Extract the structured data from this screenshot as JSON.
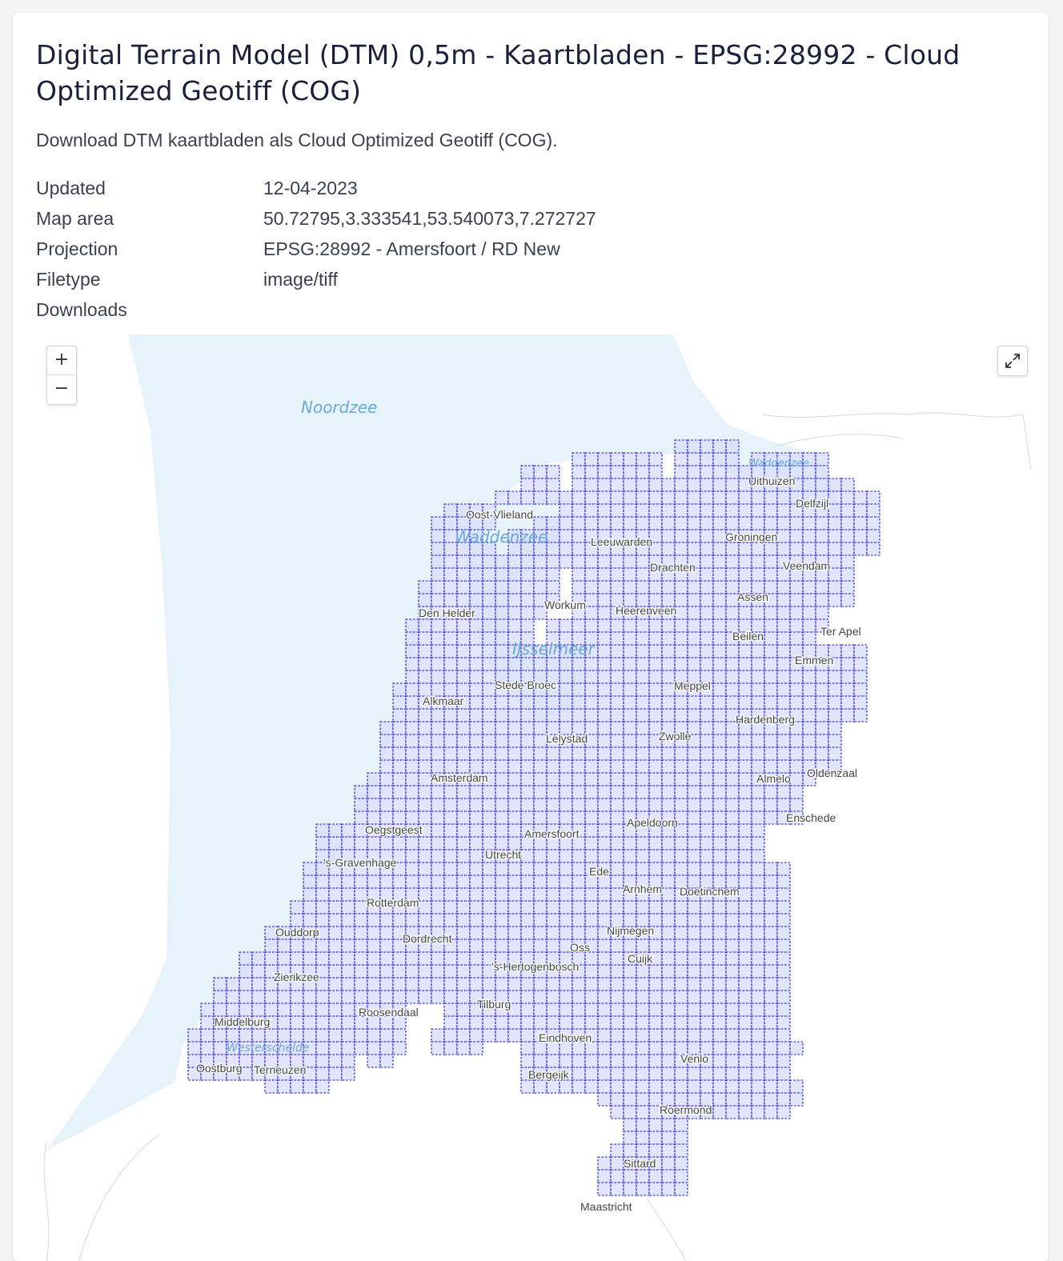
{
  "dataset": {
    "title": "Digital Terrain Model (DTM) 0,5m - Kaartbladen - EPSG:28992 - Cloud Optimized Geotiff (COG)",
    "description": "Download DTM kaartbladen als Cloud Optimized Geotiff (COG).",
    "metadata": [
      {
        "key": "Updated",
        "value": "12-04-2023"
      },
      {
        "key": "Map area",
        "value": "50.72795,3.333541,53.540073,7.272727"
      },
      {
        "key": "Projection",
        "value": "EPSG:28992 - Amersfoort / RD New"
      },
      {
        "key": "Filetype",
        "value": "image/tiff"
      },
      {
        "key": "Downloads",
        "value": ""
      }
    ]
  },
  "map": {
    "zoom_in_label": "+",
    "zoom_out_label": "−",
    "fullscreen_icon": "expand-icon",
    "colors": {
      "sea": "#e7f3fa",
      "tile_fill": "#d9dcff",
      "tile_stroke": "#0f12c8",
      "water_label": "#6aa9d6",
      "place_label": "#444444"
    },
    "water_labels": [
      "Noordzee",
      "Waddenzee",
      "IJsselmeer",
      "Waddenzee",
      "Westerschelde"
    ],
    "place_labels": [
      "Oost-Vlieland",
      "Uithuizen",
      "Delfzijl",
      "Leeuwarden",
      "Groningen",
      "Drachten",
      "Veendam",
      "Assen",
      "Den Helder",
      "Workum",
      "Heerenveen",
      "Beilen",
      "Ter Apel",
      "Emmen",
      "Stede Broec",
      "Meppel",
      "Alkmaar",
      "Hardenberg",
      "Lelystad",
      "Zwolle",
      "Amsterdam",
      "Almelo",
      "Oldenzaal",
      "Enschede",
      "Oegstgeest",
      "Amersfoort",
      "Apeldoorn",
      "'s-Gravenhage",
      "Utrecht",
      "Ede",
      "Arnhem",
      "Doetinchem",
      "Rotterdam",
      "Ouddorp",
      "Dordrecht",
      "Nijmegen",
      "Oss",
      "Cuijk",
      "Zierikzee",
      "'s-Hertogenbosch",
      "Tilburg",
      "Middelburg",
      "Roosendaal",
      "Eindhoven",
      "Oostburg",
      "Terneuzen",
      "Venlo",
      "Bergeijk",
      "Roermond",
      "Sittard",
      "Maastricht"
    ]
  }
}
